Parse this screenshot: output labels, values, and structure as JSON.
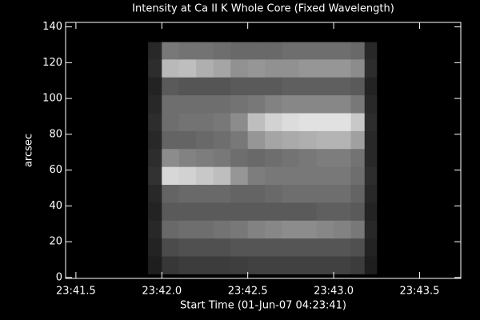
{
  "chart_data": {
    "type": "heatmap",
    "title": "Intensity at Ca II K Whole Core (Fixed Wavelength)",
    "x_label": "Start Time (01-Jun-07 04:23:41)",
    "y_label": "arcsec",
    "xlim": [
      41.44,
      43.74
    ],
    "ylim": [
      -0.5,
      142.5
    ],
    "xticks": [
      {
        "value": 41.5,
        "label": "23:41.5"
      },
      {
        "value": 42.0,
        "label": "23:42.0"
      },
      {
        "value": 42.5,
        "label": "23:42.5"
      },
      {
        "value": 43.0,
        "label": "23:43.0"
      },
      {
        "value": 43.5,
        "label": "23:43.5"
      }
    ],
    "yticks": [
      0,
      20,
      40,
      60,
      80,
      100,
      120,
      140
    ],
    "x_edges": [
      41.92,
      42.0,
      42.1,
      42.2,
      42.3,
      42.4,
      42.5,
      42.6,
      42.7,
      42.8,
      42.9,
      43.0,
      43.1,
      43.18,
      43.25
    ],
    "y_edges": [
      2,
      12,
      22,
      32,
      42,
      52,
      62,
      72,
      82,
      92,
      102,
      112,
      122,
      131.5
    ],
    "z": [
      [
        30,
        55,
        60,
        60,
        60,
        62,
        65,
        65,
        65,
        65,
        65,
        65,
        60,
        30
      ],
      [
        35,
        75,
        80,
        80,
        80,
        85,
        85,
        85,
        85,
        85,
        85,
        85,
        80,
        35
      ],
      [
        40,
        105,
        110,
        110,
        115,
        120,
        130,
        135,
        140,
        140,
        135,
        130,
        120,
        40
      ],
      [
        35,
        90,
        90,
        90,
        90,
        90,
        90,
        90,
        90,
        90,
        95,
        95,
        90,
        35
      ],
      [
        40,
        100,
        105,
        105,
        105,
        100,
        100,
        105,
        110,
        110,
        110,
        110,
        100,
        40
      ],
      [
        50,
        215,
        210,
        200,
        190,
        150,
        125,
        120,
        120,
        120,
        120,
        120,
        110,
        45
      ],
      [
        45,
        140,
        130,
        125,
        120,
        110,
        105,
        110,
        115,
        120,
        125,
        125,
        115,
        40
      ],
      [
        40,
        100,
        100,
        105,
        110,
        120,
        150,
        165,
        170,
        175,
        180,
        180,
        160,
        40
      ],
      [
        45,
        110,
        115,
        115,
        120,
        140,
        190,
        210,
        220,
        225,
        225,
        225,
        200,
        45
      ],
      [
        40,
        110,
        110,
        110,
        110,
        115,
        120,
        130,
        135,
        135,
        135,
        135,
        120,
        40
      ],
      [
        35,
        90,
        85,
        85,
        85,
        90,
        90,
        90,
        95,
        95,
        95,
        95,
        90,
        35
      ],
      [
        45,
        185,
        190,
        175,
        165,
        145,
        150,
        145,
        145,
        150,
        150,
        150,
        140,
        45
      ],
      [
        40,
        120,
        115,
        115,
        110,
        105,
        105,
        105,
        110,
        110,
        110,
        110,
        105,
        40
      ]
    ]
  }
}
